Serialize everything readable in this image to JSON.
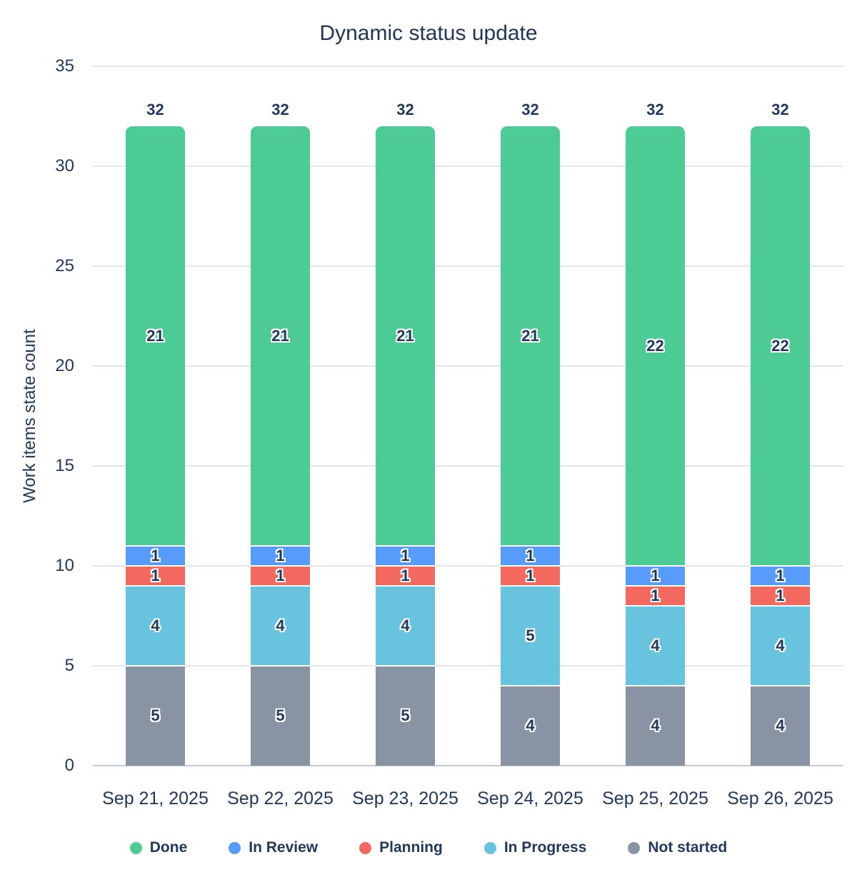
{
  "chart_data": {
    "type": "bar",
    "stacked": true,
    "title": "Dynamic status update",
    "ylabel": "Work items state count",
    "xlabel": "",
    "ylim": [
      0,
      35
    ],
    "yticks": [
      0,
      5,
      10,
      15,
      20,
      25,
      30,
      35
    ],
    "grid": true,
    "categories": [
      "Sep 21, 2025",
      "Sep 22, 2025",
      "Sep 23, 2025",
      "Sep 24, 2025",
      "Sep 25, 2025",
      "Sep 26, 2025"
    ],
    "series": [
      {
        "name": "Not started",
        "color": "#8893A4",
        "values": [
          5,
          5,
          5,
          4,
          4,
          4
        ]
      },
      {
        "name": "In Progress",
        "color": "#67C3DE",
        "values": [
          4,
          4,
          4,
          5,
          4,
          4
        ]
      },
      {
        "name": "Planning",
        "color": "#F3695F",
        "values": [
          1,
          1,
          1,
          1,
          1,
          1
        ]
      },
      {
        "name": "In Review",
        "color": "#579CFA",
        "values": [
          1,
          1,
          1,
          1,
          1,
          1
        ]
      },
      {
        "name": "Done",
        "color": "#4DCB94",
        "values": [
          21,
          21,
          21,
          21,
          22,
          22
        ]
      }
    ],
    "totals": [
      32,
      32,
      32,
      32,
      32,
      32
    ],
    "legend": {
      "position": "bottom",
      "order": [
        "Done",
        "In Review",
        "Planning",
        "In Progress",
        "Not started"
      ]
    },
    "colors": {
      "text": "#21395D",
      "title": "#203657",
      "gridline": "#E3E6EB",
      "axis_line": "#C5CBD5",
      "background": "#FFFFFF"
    }
  }
}
